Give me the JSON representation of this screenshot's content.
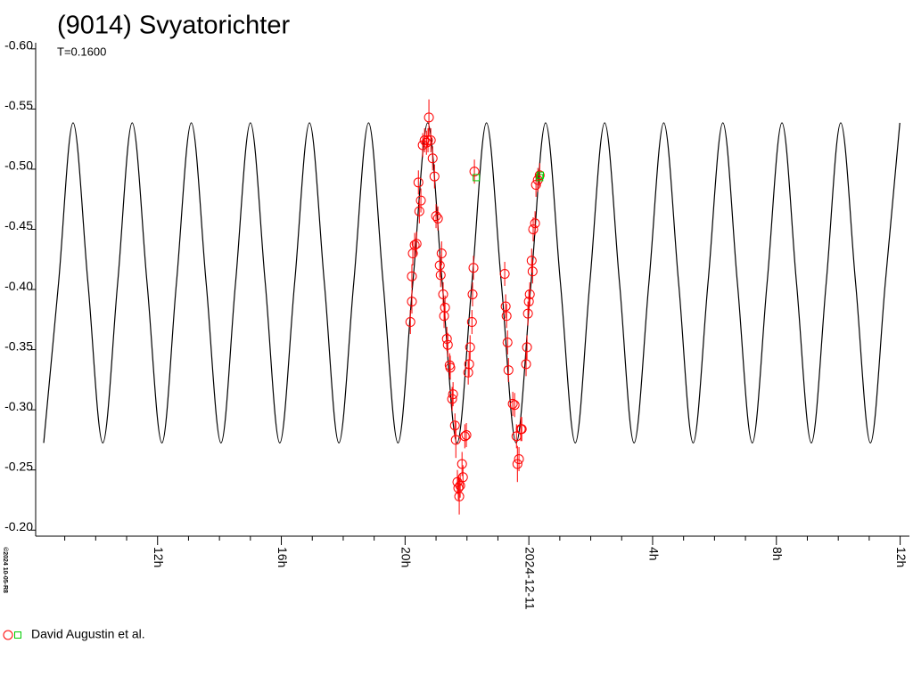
{
  "chart_data": {
    "type": "scatter",
    "title": "(9014) Svyatorichter",
    "subtitle": "T=0.1600",
    "watermark": "©2024 10-05-R8",
    "xlim": [
      -15.94,
      12.3
    ],
    "xticks": [
      {
        "value": -12,
        "label": "12h"
      },
      {
        "value": -8,
        "label": "16h"
      },
      {
        "value": -4,
        "label": "20h"
      },
      {
        "value": 0,
        "label": "2024-12-11"
      },
      {
        "value": 4,
        "label": "4h"
      },
      {
        "value": 8,
        "label": "8h"
      },
      {
        "value": 12,
        "label": "12h"
      }
    ],
    "xminorticks": [
      -15,
      -14,
      -13,
      -11,
      -10,
      -9,
      -7,
      -6,
      -5,
      -3,
      -2,
      -1,
      1,
      2,
      3,
      5,
      6,
      7,
      9,
      10,
      11
    ],
    "ylim": [
      -0.195,
      -0.611
    ],
    "yticks": [
      {
        "value": -0.6,
        "label": "-0.60"
      },
      {
        "value": -0.55,
        "label": "-0.55"
      },
      {
        "value": -0.5,
        "label": "-0.50"
      },
      {
        "value": -0.45,
        "label": "-0.45"
      },
      {
        "value": -0.4,
        "label": "-0.40"
      },
      {
        "value": -0.35,
        "label": "-0.35"
      },
      {
        "value": -0.3,
        "label": "-0.30"
      },
      {
        "value": -0.25,
        "label": "-0.25"
      },
      {
        "value": -0.2,
        "label": "-0.20"
      }
    ],
    "curve": {
      "type": "line",
      "color": "#000000",
      "x": [
        -15.68,
        -15.2,
        -14.73,
        -14.25,
        -13.77,
        -13.29,
        -12.82,
        -12.34,
        -11.86,
        -11.39,
        -10.91,
        -10.43,
        -9.95,
        -9.48,
        -9.0,
        -8.52,
        -8.05,
        -7.57,
        -7.09,
        -6.61,
        -6.14,
        -5.66,
        -5.18,
        -4.71,
        -4.23,
        -3.75,
        -3.27,
        -2.8,
        -2.32,
        -1.84,
        -1.37,
        -0.89,
        -0.41,
        0.07,
        0.54,
        1.02,
        1.5,
        1.97,
        2.45,
        2.93,
        3.4,
        3.88,
        4.36,
        4.84,
        5.31,
        5.79,
        6.27,
        6.74,
        7.22,
        7.7,
        8.18,
        8.65,
        9.13,
        9.61,
        10.08,
        10.56,
        11.04,
        11.52,
        11.99
      ],
      "values": [
        -0.2725,
        -0.4055,
        -0.5385,
        -0.4055,
        -0.2725,
        -0.4055,
        -0.5385,
        -0.4055,
        -0.2725,
        -0.4055,
        -0.5385,
        -0.4055,
        -0.2725,
        -0.4055,
        -0.5385,
        -0.4055,
        -0.2725,
        -0.4055,
        -0.5385,
        -0.4055,
        -0.2725,
        -0.4055,
        -0.5385,
        -0.4055,
        -0.2725,
        -0.4055,
        -0.5385,
        -0.4055,
        -0.2725,
        -0.4055,
        -0.5385,
        -0.4055,
        -0.2725,
        -0.4055,
        -0.5385,
        -0.4055,
        -0.2725,
        -0.4055,
        -0.5385,
        -0.4055,
        -0.2725,
        -0.4055,
        -0.5385,
        -0.4055,
        -0.2725,
        -0.4055,
        -0.5385,
        -0.4055,
        -0.2725,
        -0.4055,
        -0.5385,
        -0.4055,
        -0.2725,
        -0.4055,
        -0.5385,
        -0.4055,
        -0.2725,
        -0.4055,
        -0.5385
      ]
    },
    "series": [
      {
        "name": "David Augustin et al.",
        "color": "#ff0000",
        "marker": "circle",
        "x": [
          -3.83,
          -3.78,
          -3.78,
          -3.75,
          -3.69,
          -3.63,
          -3.57,
          -3.54,
          -3.49,
          -3.43,
          -3.37,
          -3.31,
          -3.26,
          -3.23,
          -3.17,
          -3.11,
          -3.05,
          -3.0,
          -2.94,
          -2.88,
          -2.85,
          -2.82,
          -2.77,
          -2.74,
          -2.71,
          -2.65,
          -2.62,
          -2.56,
          -2.54,
          -2.48,
          -2.45,
          -2.39,
          -2.36,
          -2.31,
          -2.28,
          -2.25,
          -2.22,
          -2.16,
          -2.13,
          -2.07,
          -2.02,
          -1.96,
          -1.93,
          -1.9,
          -1.84,
          -1.82,
          -1.79,
          -1.76,
          -0.78,
          -0.75,
          -0.72,
          -0.69,
          -0.66,
          -0.52,
          -0.46,
          -0.4,
          -0.37,
          -0.32,
          -0.26,
          -0.23,
          -0.09,
          -0.06,
          -0.03,
          0.0,
          0.03,
          0.09,
          0.12,
          0.14,
          0.2,
          0.23,
          0.29,
          0.35
        ],
        "values": [
          -0.373,
          -0.39,
          -0.411,
          -0.43,
          -0.437,
          -0.438,
          -0.489,
          -0.465,
          -0.474,
          -0.52,
          -0.524,
          -0.522,
          -0.524,
          -0.543,
          -0.524,
          -0.509,
          -0.494,
          -0.461,
          -0.459,
          -0.42,
          -0.412,
          -0.43,
          -0.396,
          -0.378,
          -0.385,
          -0.359,
          -0.354,
          -0.337,
          -0.335,
          -0.309,
          -0.313,
          -0.287,
          -0.275,
          -0.24,
          -0.235,
          -0.228,
          -0.237,
          -0.255,
          -0.244,
          -0.278,
          -0.279,
          -0.331,
          -0.338,
          -0.352,
          -0.373,
          -0.396,
          -0.418,
          -0.498,
          -0.413,
          -0.386,
          -0.378,
          -0.356,
          -0.333,
          -0.305,
          -0.304,
          -0.278,
          -0.255,
          -0.259,
          -0.284,
          -0.284,
          -0.338,
          -0.352,
          -0.38,
          -0.39,
          -0.396,
          -0.424,
          -0.415,
          -0.45,
          -0.455,
          -0.487,
          -0.491,
          -0.495
        ],
        "errors": [
          0.01,
          0.01,
          0.01,
          0.01,
          0.01,
          0.01,
          0.01,
          0.01,
          0.01,
          0.01,
          0.01,
          0.01,
          0.01,
          0.015,
          0.01,
          0.01,
          0.01,
          0.01,
          0.01,
          0.01,
          0.01,
          0.01,
          0.01,
          0.01,
          0.01,
          0.01,
          0.01,
          0.01,
          0.01,
          0.01,
          0.01,
          0.01,
          0.015,
          0.01,
          0.01,
          0.015,
          0.01,
          0.01,
          0.01,
          0.01,
          0.01,
          0.01,
          0.01,
          0.01,
          0.01,
          0.01,
          0.01,
          0.01,
          0.01,
          0.01,
          0.01,
          0.01,
          0.01,
          0.01,
          0.01,
          0.01,
          0.015,
          0.01,
          0.01,
          0.01,
          0.01,
          0.01,
          0.01,
          0.01,
          0.01,
          0.01,
          0.01,
          0.01,
          0.01,
          0.01,
          0.01,
          0.01
        ]
      },
      {
        "color": "#00cc00",
        "marker": "square",
        "x": [
          -1.7,
          0.35,
          0.37
        ],
        "values": [
          -0.493,
          -0.493,
          -0.495
        ]
      }
    ]
  }
}
